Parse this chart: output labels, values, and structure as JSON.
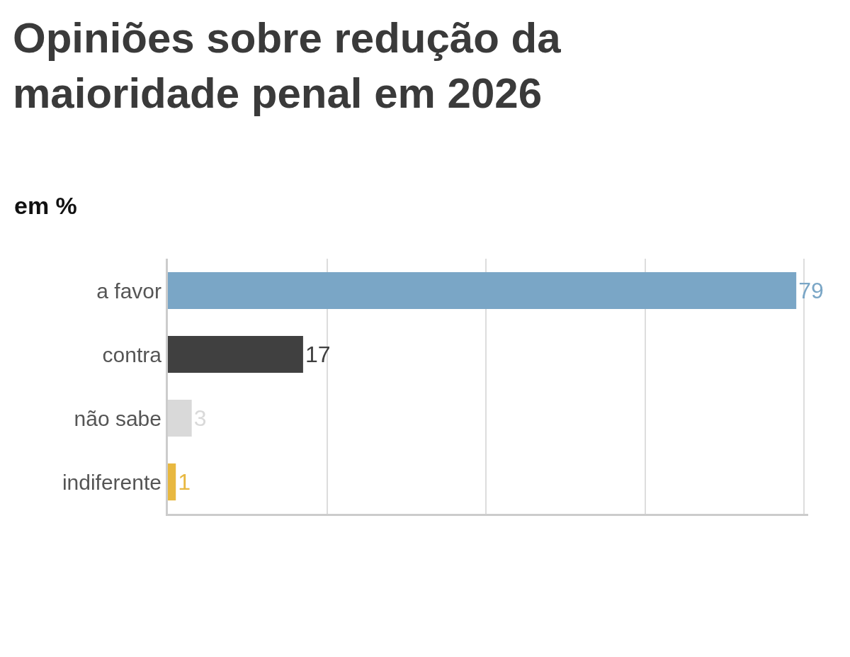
{
  "chart_data": {
    "type": "bar",
    "orientation": "horizontal",
    "title": "Opiniões sobre redução da\nmaioridade penal em 2026",
    "subtitle": "em %",
    "categories": [
      "a favor",
      "contra",
      "não sabe",
      "indiferente"
    ],
    "values": [
      79,
      17,
      3,
      1
    ],
    "colors": [
      "#7aa6c6",
      "#404040",
      "#d9d9d9",
      "#e8b840"
    ],
    "xlim": [
      0,
      80.5
    ],
    "xticks": [
      {
        "value": 0,
        "label": null
      },
      {
        "value": 20,
        "label": null
      },
      {
        "value": 40,
        "label": null
      },
      {
        "value": 60,
        "label": null
      },
      {
        "value": 80,
        "label": null
      }
    ],
    "tick_labels": "y",
    "grid": "x",
    "data_labels": true
  }
}
